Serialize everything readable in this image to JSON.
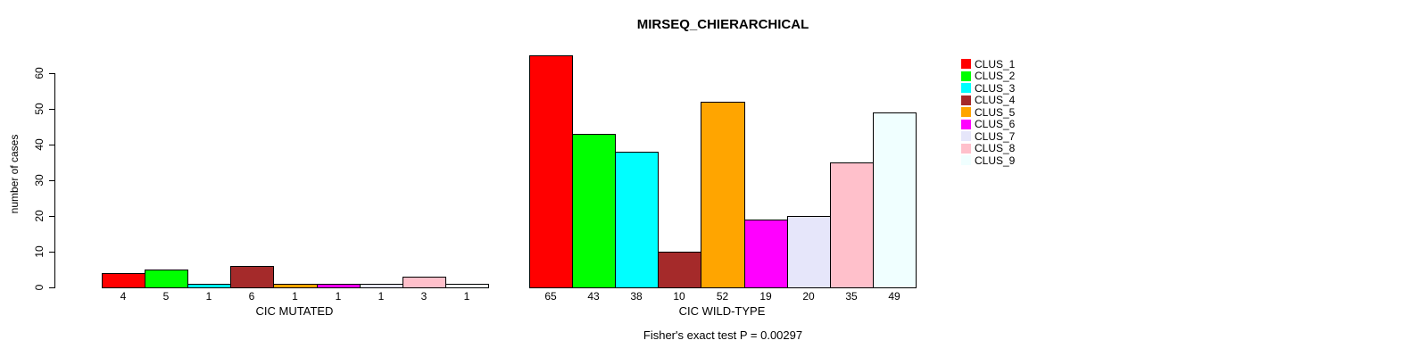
{
  "chart_data": {
    "type": "bar",
    "title": "MIRSEQ_CHIERARCHICAL",
    "ylabel": "number of cases",
    "xlabel": "",
    "ylim": [
      0,
      65
    ],
    "yticks": [
      0,
      10,
      20,
      30,
      40,
      50,
      60
    ],
    "grid": false,
    "bar_value_labels_shown": true,
    "legend_position": "right-outside",
    "annotation": "Fisher's exact test P = 0.00297",
    "categories": [
      "CLUS_1",
      "CLUS_2",
      "CLUS_3",
      "CLUS_4",
      "CLUS_5",
      "CLUS_6",
      "CLUS_7",
      "CLUS_8",
      "CLUS_9"
    ],
    "groups": [
      {
        "label": "CIC MUTATED",
        "values": [
          4,
          5,
          1,
          6,
          1,
          1,
          1,
          3,
          1
        ]
      },
      {
        "label": "CIC WILD-TYPE",
        "values": [
          65,
          43,
          38,
          10,
          52,
          19,
          20,
          35,
          49
        ]
      }
    ],
    "legend": [
      {
        "label": "CLUS_1",
        "color": "#FF0000"
      },
      {
        "label": "CLUS_2",
        "color": "#00FF00"
      },
      {
        "label": "CLUS_3",
        "color": "#00FFFF"
      },
      {
        "label": "CLUS_4",
        "color": "#A52A2A"
      },
      {
        "label": "CLUS_5",
        "color": "#FFA500"
      },
      {
        "label": "CLUS_6",
        "color": "#FF00FF"
      },
      {
        "label": "CLUS_7",
        "color": "#E6E6FA"
      },
      {
        "label": "CLUS_8",
        "color": "#FFC0CB"
      },
      {
        "label": "CLUS_9",
        "color": "#F0FFFF"
      }
    ],
    "axis_color": "#000000",
    "bar_border_color": "#000000",
    "background_color": "#FFFFFF"
  }
}
